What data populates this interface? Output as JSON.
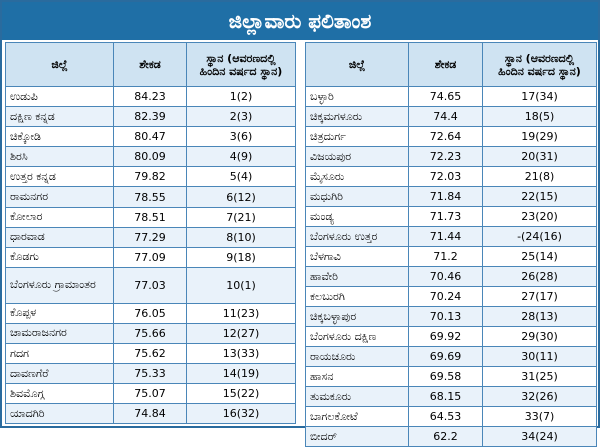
{
  "title": "ಜಿಲ್ಲಾವಾರು ಫಲಿತಾಂಶ",
  "headers": {
    "district": "ಜಿಲ್ಲೆ",
    "percent": "ಶೇಕಡ",
    "rank_line1": "ಸ್ಥಾನ (ಆವರಣದಲ್ಲಿ",
    "rank_line2": "ಹಿಂದಿನ ವರ್ಷದ ಸ್ಥಾನ)"
  },
  "left_rows": [
    {
      "district": "ಉಡುಪಿ",
      "percent": "84.23",
      "rank": "1(2)"
    },
    {
      "district": "ದಕ್ಷಿಣ ಕನ್ನಡ",
      "percent": "82.39",
      "rank": "2(3)"
    },
    {
      "district": "ಚಿಕ್ಕೋಡಿ",
      "percent": "80.47",
      "rank": "3(6)"
    },
    {
      "district": "ಶಿರಸಿ",
      "percent": "80.09",
      "rank": "4(9)"
    },
    {
      "district": "ಉತ್ತರ ಕನ್ನಡ",
      "percent": "79.82",
      "rank": "5(4)"
    },
    {
      "district": "ರಾಮನಗರ",
      "percent": "78.55",
      "rank": "6(12)"
    },
    {
      "district": "ಕೋಲಾರ",
      "percent": "78.51",
      "rank": "7(21)"
    },
    {
      "district": "ಧಾರವಾಡ",
      "percent": "77.29",
      "rank": "8(10)"
    },
    {
      "district": "ಕೊಡಗು",
      "percent": "77.09",
      "rank": "9(18)"
    },
    {
      "district": "ಬೆಂಗಳೂರು ಗ್ರಾಮಾಂತರ",
      "percent": "77.03",
      "rank": "10(1)"
    },
    {
      "district": "ಕೊಪ್ಪಳ",
      "percent": "76.05",
      "rank": "11(23)"
    },
    {
      "district": "ಚಾಮರಾಜನಗರ",
      "percent": "75.66",
      "rank": "12(27)"
    },
    {
      "district": "ಗದಗ",
      "percent": "75.62",
      "rank": "13(33)"
    },
    {
      "district": "ದಾವಣಗೆರೆ",
      "percent": "75.33",
      "rank": "14(19)"
    },
    {
      "district": "ಶಿವಮೊಗ್ಗ",
      "percent": "75.07",
      "rank": "15(22)"
    },
    {
      "district": "ಯಾದಗಿರಿ",
      "percent": "74.84",
      "rank": "16(32)"
    }
  ],
  "right_rows": [
    {
      "district": "ಬಳ್ಳಾರಿ",
      "percent": "74.65",
      "rank": "17(34)"
    },
    {
      "district": "ಚಿಕ್ಕಮಗಳೂರು",
      "percent": "74.4",
      "rank": "18(5)"
    },
    {
      "district": "ಚಿತ್ರದುರ್ಗ",
      "percent": "72.64",
      "rank": "19(29)"
    },
    {
      "district": "ವಿಜಯಪುರ",
      "percent": "72.23",
      "rank": "20(31)"
    },
    {
      "district": "ಮೈಸೂರು",
      "percent": "72.03",
      "rank": "21(8)"
    },
    {
      "district": "ಮಧುಗಿರಿ",
      "percent": "71.84",
      "rank": "22(15)"
    },
    {
      "district": "ಮಂಡ್ಯ",
      "percent": "71.73",
      "rank": "23(20)"
    },
    {
      "district": "ಬೆಂಗಳೂರು ಉತ್ತರ",
      "percent": "71.44",
      "rank": "-(24(16)"
    },
    {
      "district": "ಬೆಳಗಾವಿ",
      "percent": "71.2",
      "rank": "25(14)"
    },
    {
      "district": "ಹಾವೇರಿ",
      "percent": "70.46",
      "rank": "26(28)"
    },
    {
      "district": "ಕಲಬುರಗಿ",
      "percent": "70.24",
      "rank": "27(17)"
    },
    {
      "district": "ಚಿಕ್ಕಬಳ್ಳಾಪುರ",
      "percent": "70.13",
      "rank": "28(13)"
    },
    {
      "district": "ಬೆಂಗಳೂರು ದಕ್ಷಿಣ",
      "percent": "69.92",
      "rank": "29(30)"
    },
    {
      "district": "ರಾಯಚೂರು",
      "percent": "69.69",
      "rank": "30(11)"
    },
    {
      "district": "ಹಾಸನ",
      "percent": "69.58",
      "rank": "31(25)"
    },
    {
      "district": "ತುಮಕೂರು",
      "percent": "68.15",
      "rank": "32(26)"
    },
    {
      "district": "ಬಾಗಲಕೋಟೆ",
      "percent": "64.53",
      "rank": "33(7)"
    },
    {
      "district": "ಬೀದರ್",
      "percent": "62.2",
      "rank": "34(24)"
    }
  ]
}
